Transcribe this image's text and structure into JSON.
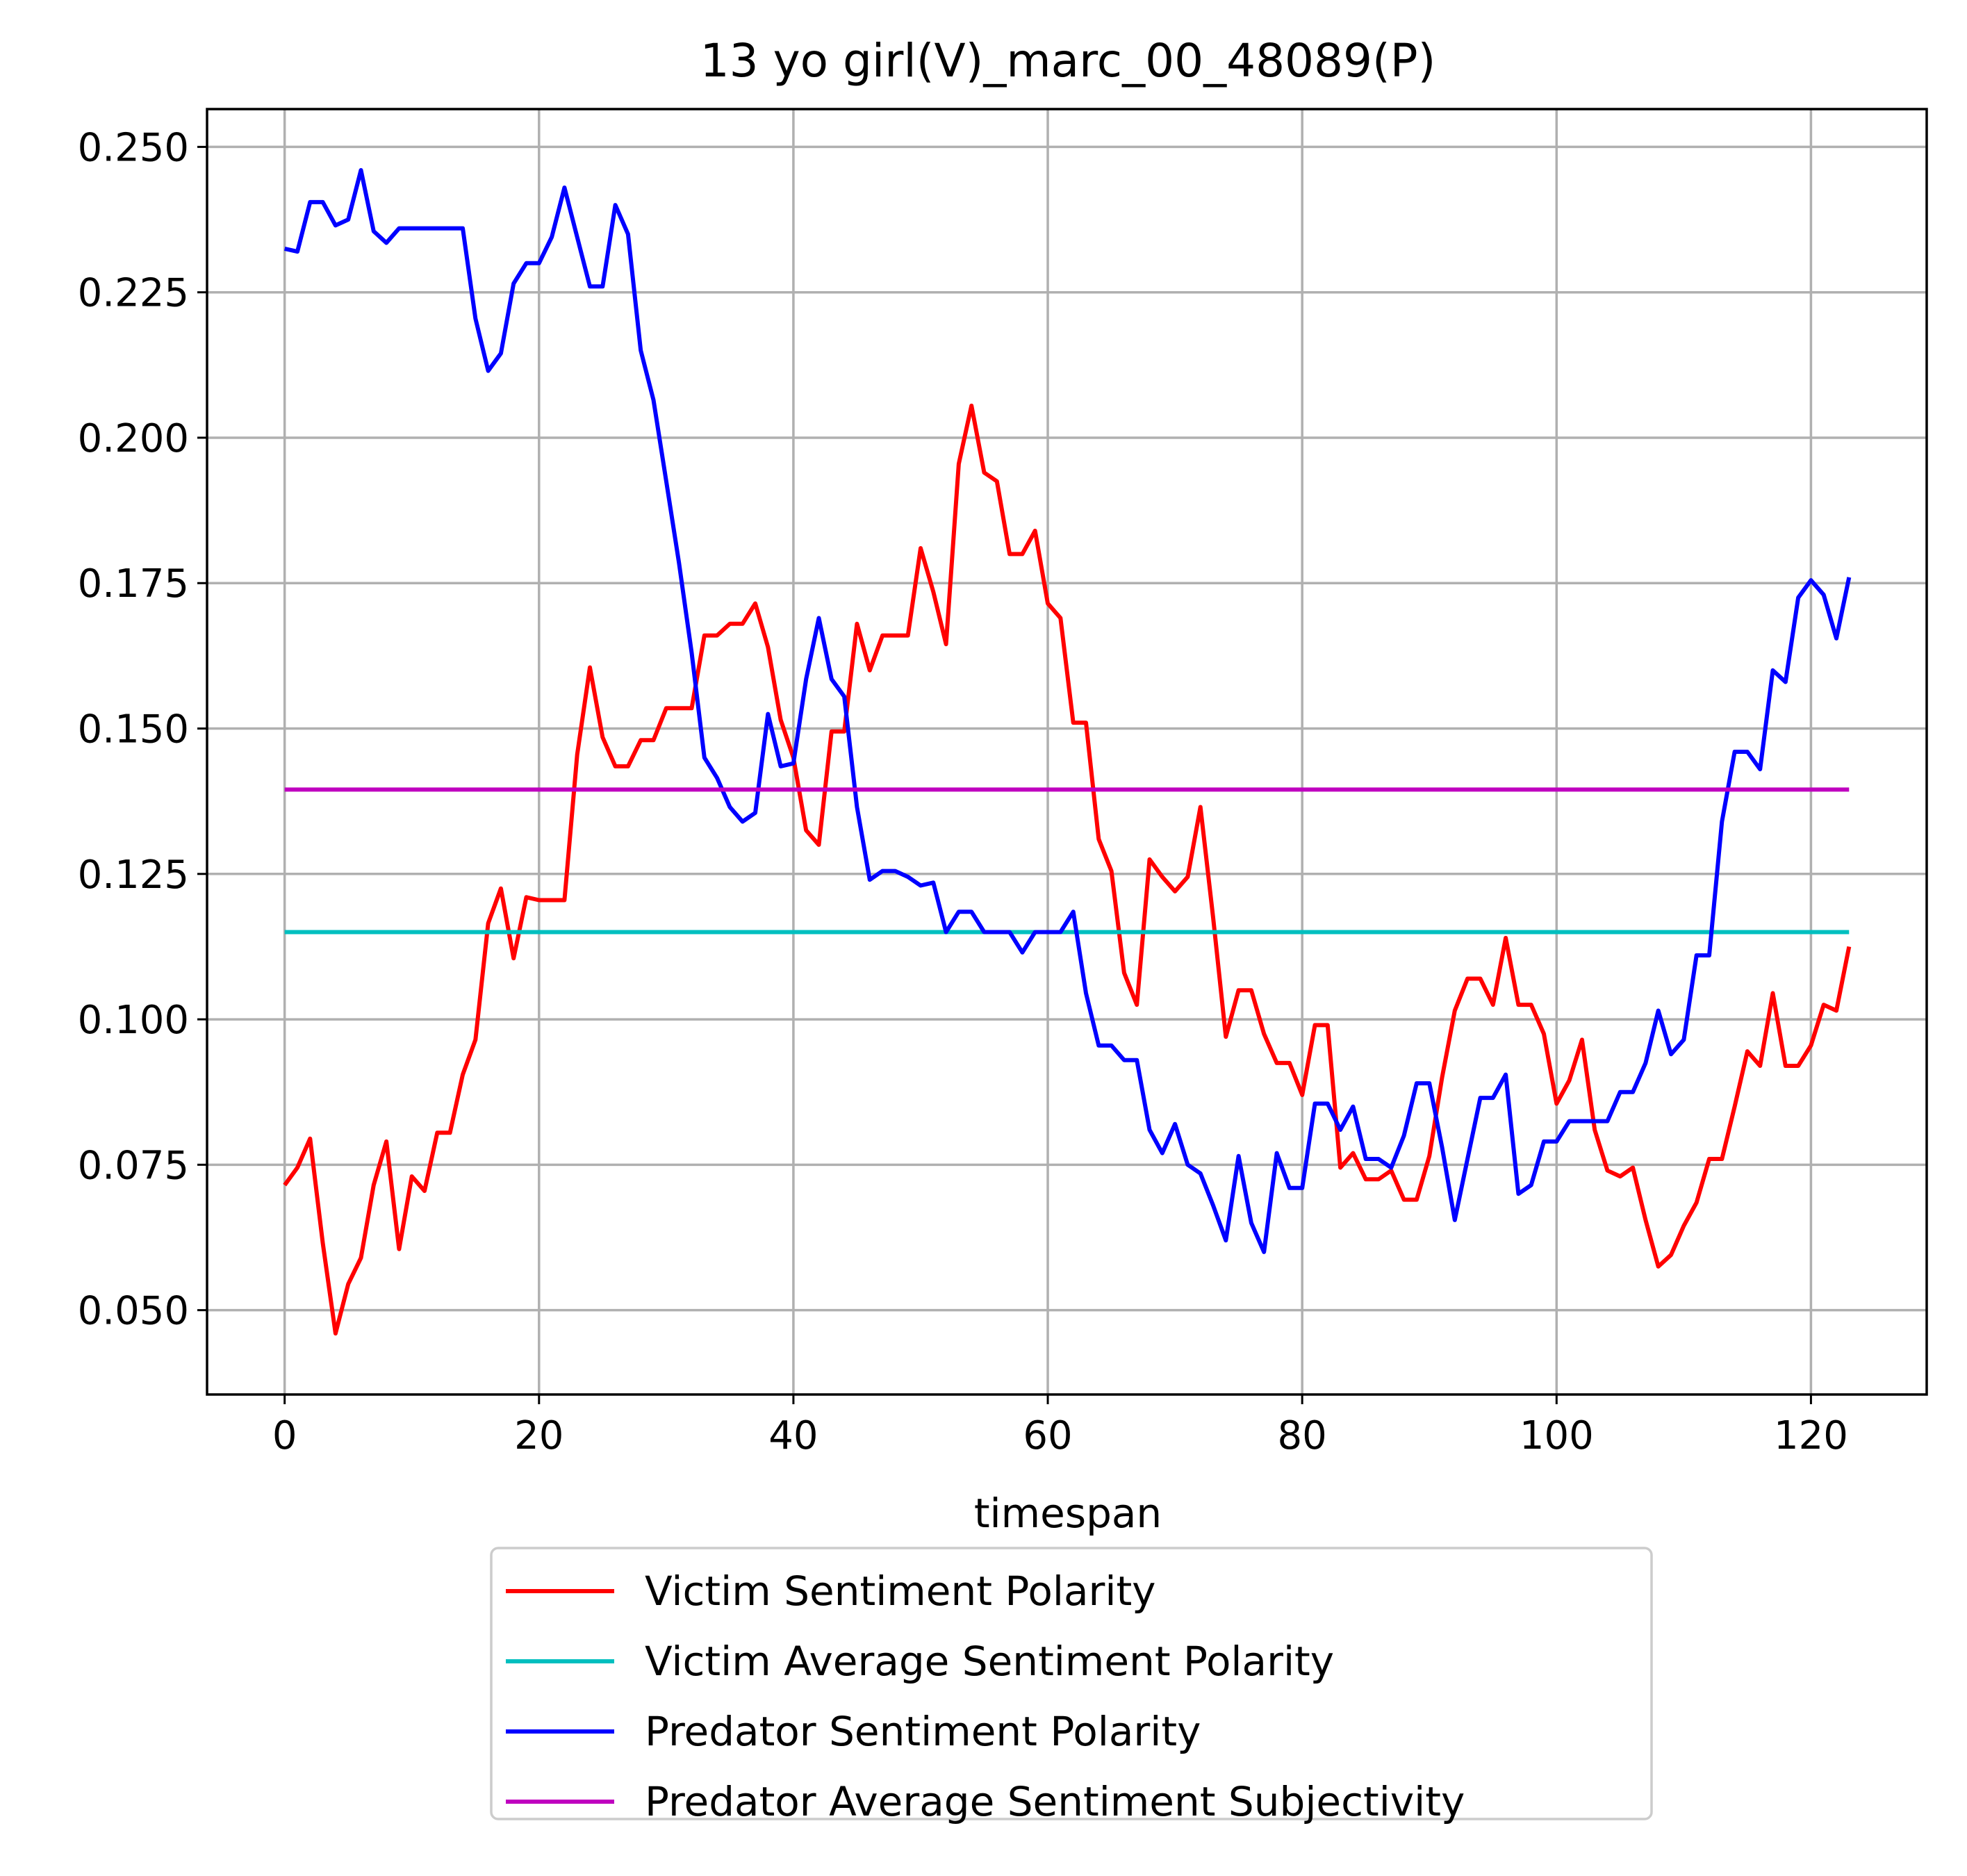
{
  "chart_data": {
    "type": "line",
    "title": "13 yo girl(V)_marc_00_48089(P)",
    "xlabel": "timespan",
    "ylabel": "",
    "xlim": [
      -6.1,
      129.1
    ],
    "ylim": [
      0.0355,
      0.2565
    ],
    "xticks": [
      0,
      20,
      40,
      60,
      80,
      100,
      120
    ],
    "xtick_labels": [
      "0",
      "20",
      "40",
      "60",
      "80",
      "100",
      "120"
    ],
    "yticks": [
      0.05,
      0.075,
      0.1,
      0.125,
      0.15,
      0.175,
      0.2,
      0.225,
      0.25
    ],
    "ytick_labels": [
      "0.050",
      "0.075",
      "0.100",
      "0.125",
      "0.150",
      "0.175",
      "0.200",
      "0.225",
      "0.250"
    ],
    "grid": true,
    "legend_position": "below plot, centered",
    "series": [
      {
        "name": "Victim Sentiment Polarity",
        "color": "#ff0000",
        "x": [
          0,
          1,
          2,
          3,
          4,
          5,
          6,
          7,
          8,
          9,
          10,
          11,
          12,
          13,
          14,
          15,
          16,
          17,
          18,
          19,
          20,
          21,
          22,
          23,
          24,
          25,
          26,
          27,
          28,
          29,
          30,
          31,
          32,
          33,
          34,
          35,
          36,
          37,
          38,
          39,
          40,
          41,
          42,
          43,
          44,
          45,
          46,
          47,
          48,
          49,
          50,
          51,
          52,
          53,
          54,
          55,
          56,
          57,
          58,
          59,
          60,
          61,
          62,
          63,
          64,
          65,
          66,
          67,
          68,
          69,
          70,
          71,
          72,
          73,
          74,
          75,
          76,
          77,
          78,
          79,
          80,
          81,
          82,
          83,
          84,
          85,
          86,
          87,
          88,
          89,
          90,
          91,
          92,
          93,
          94,
          95,
          96,
          97,
          98,
          99,
          100,
          101,
          102,
          103,
          104,
          105,
          106,
          107,
          108,
          109,
          110,
          111,
          112,
          113,
          114,
          115,
          116,
          117,
          118,
          119,
          120,
          121,
          122,
          123
        ],
        "y": [
          0.0715,
          0.0745,
          0.0795,
          0.0615,
          0.046,
          0.0545,
          0.059,
          0.0715,
          0.079,
          0.0605,
          0.073,
          0.0705,
          0.0805,
          0.0805,
          0.0905,
          0.0965,
          0.1165,
          0.1225,
          0.1105,
          0.121,
          0.1205,
          0.1205,
          0.1205,
          0.1455,
          0.1605,
          0.1485,
          0.1435,
          0.1435,
          0.148,
          0.148,
          0.1535,
          0.1535,
          0.1535,
          0.166,
          0.166,
          0.168,
          0.168,
          0.1715,
          0.164,
          0.1515,
          0.145,
          0.1325,
          0.13,
          0.1495,
          0.1495,
          0.168,
          0.16,
          0.166,
          0.166,
          0.166,
          0.181,
          0.1735,
          0.1645,
          0.1955,
          0.2055,
          0.194,
          0.1925,
          0.18,
          0.18,
          0.184,
          0.1715,
          0.169,
          0.151,
          0.151,
          0.131,
          0.1255,
          0.108,
          0.1025,
          0.1275,
          0.1245,
          0.122,
          0.1245,
          0.1365,
          0.1175,
          0.097,
          0.105,
          0.105,
          0.0975,
          0.0925,
          0.0925,
          0.087,
          0.099,
          0.099,
          0.0745,
          0.077,
          0.0725,
          0.0725,
          0.074,
          0.069,
          0.069,
          0.0765,
          0.09,
          0.1015,
          0.107,
          0.107,
          0.1025,
          0.114,
          0.1025,
          0.1025,
          0.0975,
          0.0855,
          0.0895,
          0.0965,
          0.081,
          0.074,
          0.073,
          0.0745,
          0.0655,
          0.0575,
          0.0595,
          0.0645,
          0.0685,
          0.076,
          0.076,
          0.085,
          0.0945,
          0.092,
          0.1045,
          0.092,
          0.092,
          0.0955,
          0.1025,
          0.1015,
          0.1125
        ]
      },
      {
        "name": "Victim Average Sentiment Polarity",
        "color": "#00bfbf",
        "x": [
          0,
          123
        ],
        "y": [
          0.115,
          0.115
        ]
      },
      {
        "name": "Predator Sentiment Polarity",
        "color": "#0000ff",
        "x": [
          0,
          1,
          2,
          3,
          4,
          5,
          6,
          7,
          8,
          9,
          10,
          11,
          12,
          13,
          14,
          15,
          16,
          17,
          18,
          19,
          20,
          21,
          22,
          23,
          24,
          25,
          26,
          27,
          28,
          29,
          30,
          31,
          32,
          33,
          34,
          35,
          36,
          37,
          38,
          39,
          40,
          41,
          42,
          43,
          44,
          45,
          46,
          47,
          48,
          49,
          50,
          51,
          52,
          53,
          54,
          55,
          56,
          57,
          58,
          59,
          60,
          61,
          62,
          63,
          64,
          65,
          66,
          67,
          68,
          69,
          70,
          71,
          72,
          73,
          74,
          75,
          76,
          77,
          78,
          79,
          80,
          81,
          82,
          83,
          84,
          85,
          86,
          87,
          88,
          89,
          90,
          91,
          92,
          93,
          94,
          95,
          96,
          97,
          98,
          99,
          100,
          101,
          102,
          103,
          104,
          105,
          106,
          107,
          108,
          109,
          110,
          111,
          112,
          113,
          114,
          115,
          116,
          117,
          118,
          119,
          120,
          121,
          122,
          123
        ],
        "y": [
          0.2325,
          0.232,
          0.2405,
          0.2405,
          0.2365,
          0.2375,
          0.246,
          0.2355,
          0.2335,
          0.236,
          0.236,
          0.236,
          0.236,
          0.236,
          0.236,
          0.2205,
          0.2115,
          0.2145,
          0.2265,
          0.23,
          0.23,
          0.2345,
          0.243,
          0.2345,
          0.226,
          0.226,
          0.24,
          0.235,
          0.215,
          0.2065,
          0.1925,
          0.1785,
          0.163,
          0.145,
          0.1415,
          0.1365,
          0.134,
          0.1355,
          0.1525,
          0.1435,
          0.144,
          0.1585,
          0.169,
          0.1585,
          0.1555,
          0.1365,
          0.124,
          0.1255,
          0.1255,
          0.1245,
          0.123,
          0.1235,
          0.115,
          0.1185,
          0.1185,
          0.115,
          0.115,
          0.115,
          0.1115,
          0.115,
          0.115,
          0.115,
          0.1185,
          0.1045,
          0.0955,
          0.0955,
          0.093,
          0.093,
          0.081,
          0.077,
          0.082,
          0.075,
          0.0735,
          0.068,
          0.062,
          0.0765,
          0.065,
          0.06,
          0.077,
          0.071,
          0.071,
          0.0855,
          0.0855,
          0.081,
          0.085,
          0.076,
          0.076,
          0.0745,
          0.08,
          0.089,
          0.089,
          0.078,
          0.0655,
          0.076,
          0.0865,
          0.0865,
          0.0905,
          0.07,
          0.0715,
          0.079,
          0.079,
          0.0825,
          0.0825,
          0.0825,
          0.0825,
          0.0875,
          0.0875,
          0.0925,
          0.1015,
          0.094,
          0.0965,
          0.111,
          0.111,
          0.134,
          0.146,
          0.146,
          0.143,
          0.16,
          0.158,
          0.1725,
          0.1755,
          0.173,
          0.1655,
          0.176
        ]
      },
      {
        "name": "Predator Average Sentiment Subjectivity",
        "color": "#bf00bf",
        "x": [
          0,
          123
        ],
        "y": [
          0.1395,
          0.1395
        ]
      }
    ]
  }
}
